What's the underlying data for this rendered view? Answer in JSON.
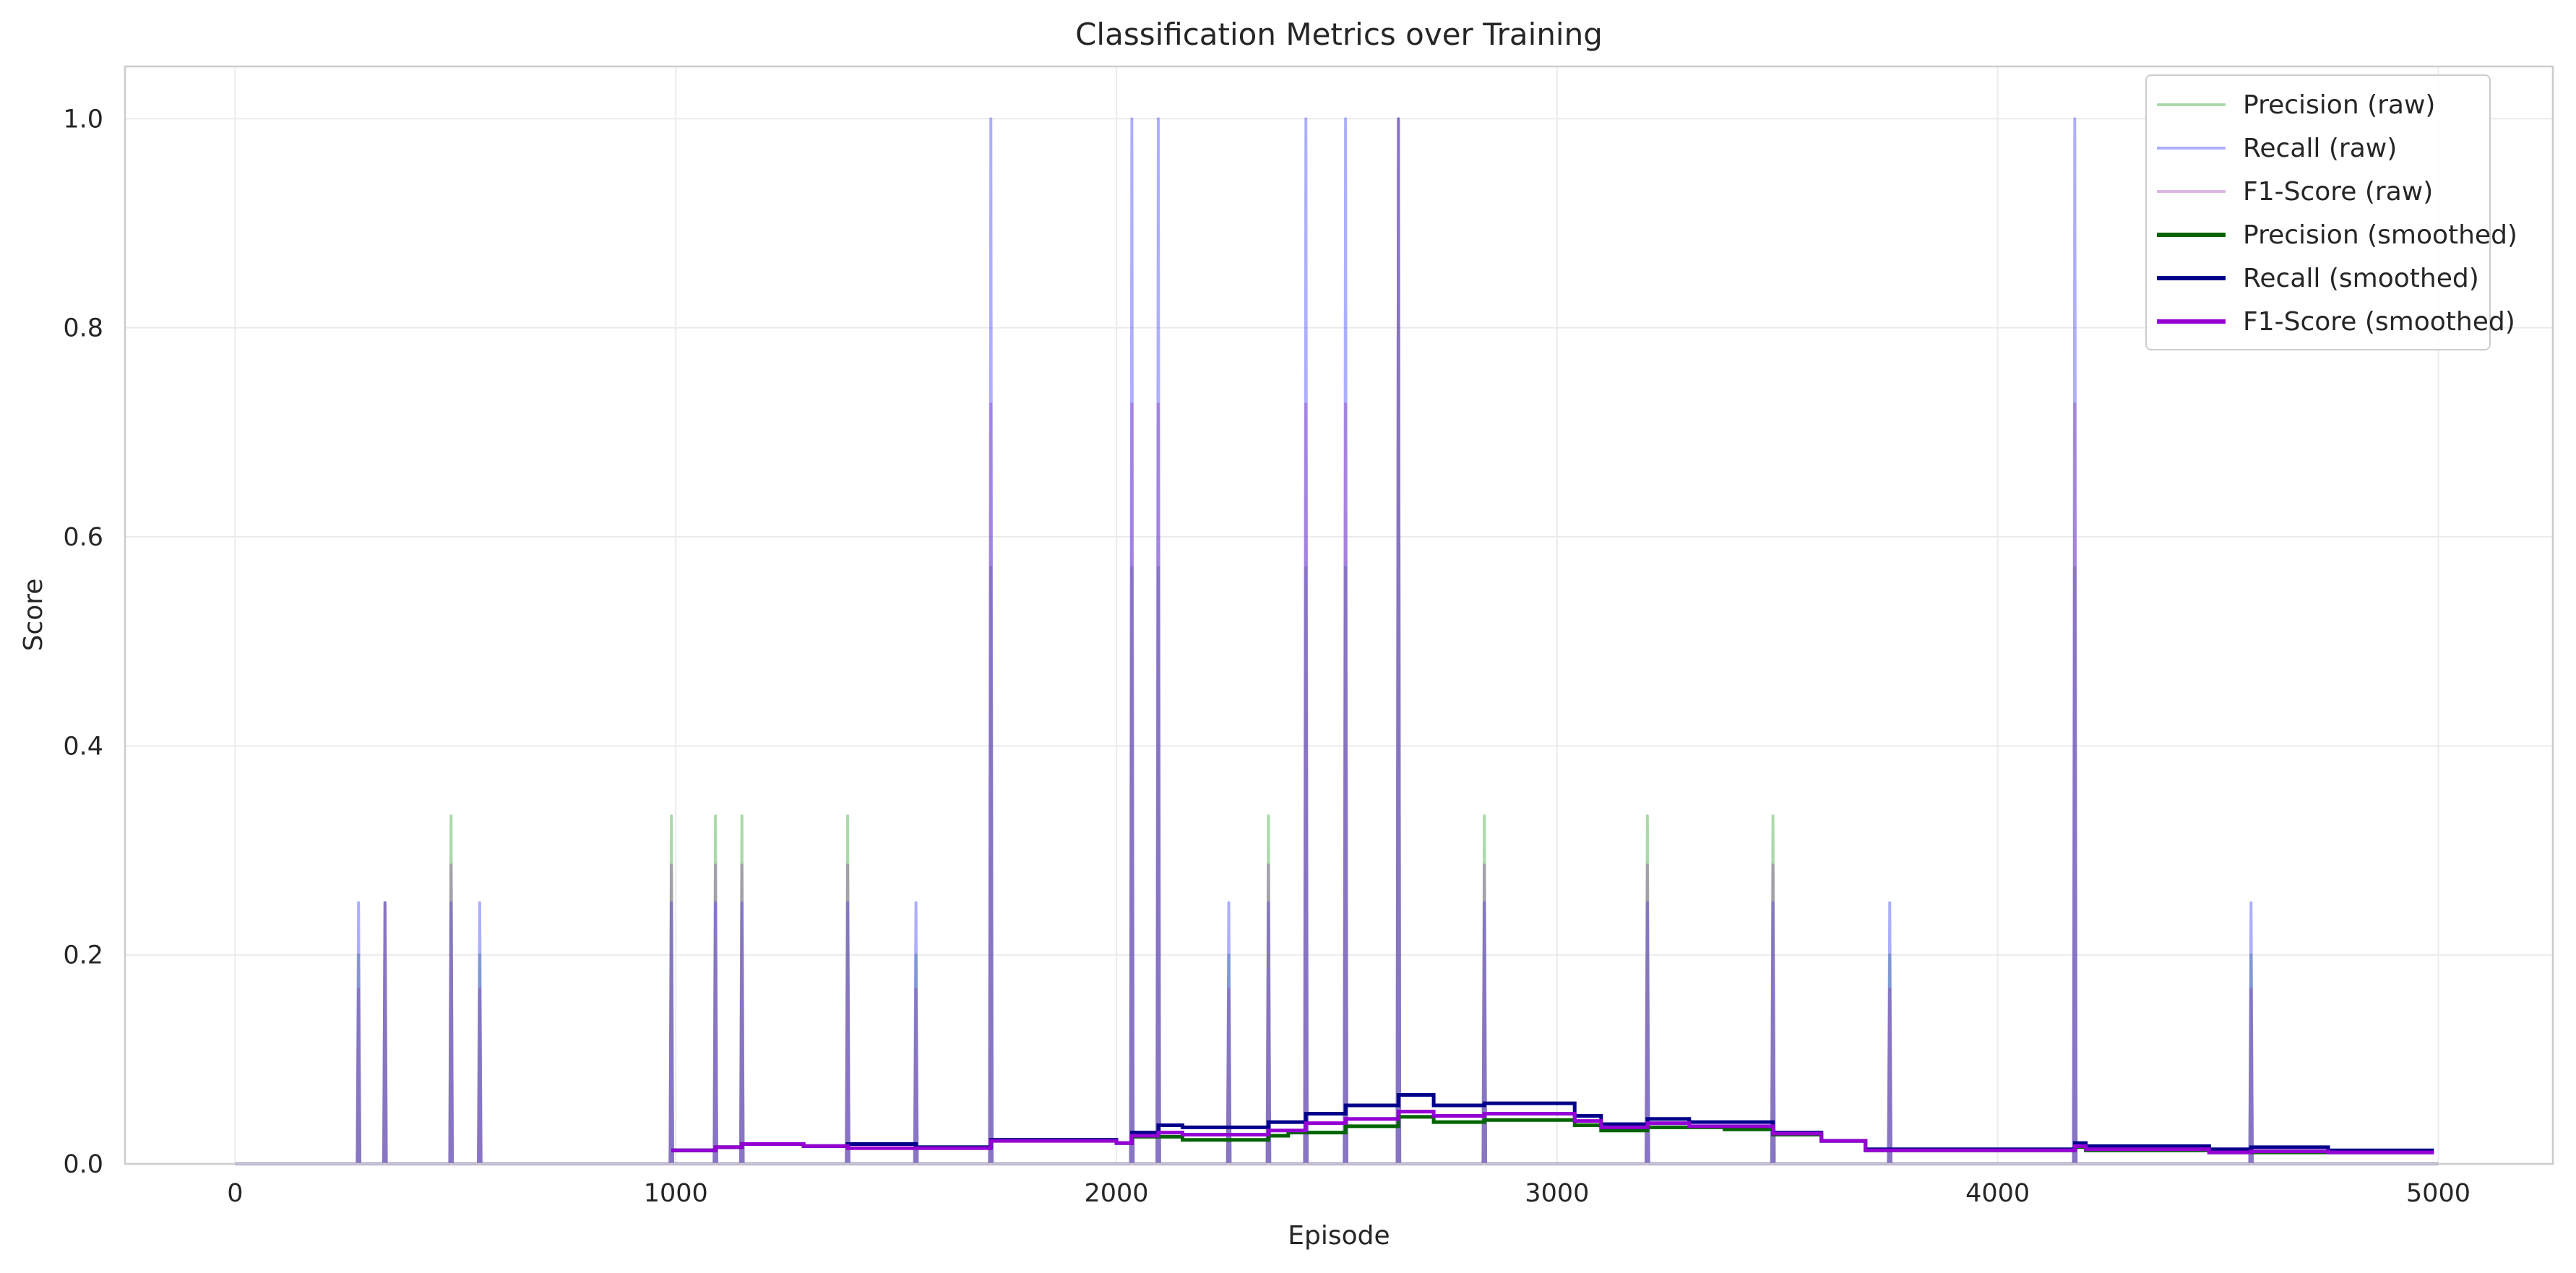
{
  "chart_data": {
    "type": "line",
    "title": "Classification Metrics over Training",
    "xlabel": "Episode",
    "ylabel": "Score",
    "xlim": [
      -250,
      5260
    ],
    "ylim": [
      0,
      1.05
    ],
    "x_ticks": [
      0,
      1000,
      2000,
      3000,
      4000,
      5000
    ],
    "y_ticks": [
      0.0,
      0.2,
      0.4,
      0.6,
      0.8,
      1.0
    ],
    "grid": true,
    "legend_position": "top-right",
    "spikes": [
      {
        "episode": 280,
        "precision": 0.2,
        "recall": 0.25,
        "f1": 0.167
      },
      {
        "episode": 340,
        "precision": 0.25,
        "recall": 0.25,
        "f1": 0.25
      },
      {
        "episode": 490,
        "precision": 0.333,
        "recall": 0.25,
        "f1": 0.286
      },
      {
        "episode": 555,
        "precision": 0.2,
        "recall": 0.25,
        "f1": 0.167
      },
      {
        "episode": 990,
        "precision": 0.333,
        "recall": 0.25,
        "f1": 0.286
      },
      {
        "episode": 1090,
        "precision": 0.333,
        "recall": 0.25,
        "f1": 0.286
      },
      {
        "episode": 1150,
        "precision": 0.333,
        "recall": 0.25,
        "f1": 0.286
      },
      {
        "episode": 1390,
        "precision": 0.333,
        "recall": 0.25,
        "f1": 0.286
      },
      {
        "episode": 1545,
        "precision": 0.2,
        "recall": 0.25,
        "f1": 0.167
      },
      {
        "episode": 1715,
        "precision": 0.571,
        "recall": 1.0,
        "f1": 0.727
      },
      {
        "episode": 2035,
        "precision": 0.571,
        "recall": 1.0,
        "f1": 0.727
      },
      {
        "episode": 2095,
        "precision": 0.571,
        "recall": 1.0,
        "f1": 0.727
      },
      {
        "episode": 2255,
        "precision": 0.2,
        "recall": 0.25,
        "f1": 0.167
      },
      {
        "episode": 2345,
        "precision": 0.333,
        "recall": 0.25,
        "f1": 0.286
      },
      {
        "episode": 2430,
        "precision": 0.571,
        "recall": 1.0,
        "f1": 0.727
      },
      {
        "episode": 2520,
        "precision": 0.571,
        "recall": 1.0,
        "f1": 0.727
      },
      {
        "episode": 2640,
        "precision": 1.0,
        "recall": 1.0,
        "f1": 1.0
      },
      {
        "episode": 2835,
        "precision": 0.333,
        "recall": 0.25,
        "f1": 0.286
      },
      {
        "episode": 3205,
        "precision": 0.333,
        "recall": 0.25,
        "f1": 0.286
      },
      {
        "episode": 3490,
        "precision": 0.333,
        "recall": 0.25,
        "f1": 0.286
      },
      {
        "episode": 3755,
        "precision": 0.2,
        "recall": 0.25,
        "f1": 0.167
      },
      {
        "episode": 4175,
        "precision": 0.571,
        "recall": 1.0,
        "f1": 0.727
      },
      {
        "episode": 4575,
        "precision": 0.2,
        "recall": 0.25,
        "f1": 0.167
      }
    ],
    "raw_episode_range": [
      0,
      5000
    ],
    "series": [
      {
        "name": "Precision (raw)",
        "color": "#2ca02c",
        "alpha": 0.4,
        "role": "raw",
        "metric": "precision"
      },
      {
        "name": "Recall (raw)",
        "color": "#4c4cff",
        "alpha": 0.45,
        "role": "raw",
        "metric": "recall"
      },
      {
        "name": "F1-Score (raw)",
        "color": "#9933aa",
        "alpha": 0.35,
        "role": "raw",
        "metric": "f1"
      },
      {
        "name": "Precision (smoothed)",
        "color": "#006400",
        "role": "smoothed",
        "x": [
          990,
          1090,
          1150,
          1290,
          1390,
          1545,
          1715,
          2000,
          2035,
          2095,
          2150,
          2345,
          2390,
          2520,
          2640,
          2720,
          2835,
          3040,
          3100,
          3205,
          3380,
          3490,
          3600,
          3700,
          4175,
          4200,
          4480,
          4575,
          4990
        ],
        "y": [
          0.013,
          0.016,
          0.019,
          0.017,
          0.019,
          0.016,
          0.023,
          0.02,
          0.026,
          0.026,
          0.023,
          0.027,
          0.03,
          0.036,
          0.045,
          0.04,
          0.042,
          0.037,
          0.032,
          0.035,
          0.033,
          0.028,
          0.022,
          0.013,
          0.016,
          0.013,
          0.011,
          0.011,
          0.011
        ]
      },
      {
        "name": "Recall (smoothed)",
        "color": "#00008b",
        "role": "smoothed",
        "x": [
          990,
          1090,
          1150,
          1290,
          1390,
          1545,
          1715,
          2000,
          2035,
          2095,
          2150,
          2345,
          2430,
          2520,
          2640,
          2720,
          2835,
          3040,
          3100,
          3205,
          3300,
          3490,
          3600,
          3700,
          4175,
          4200,
          4480,
          4575,
          4750,
          4990
        ],
        "y": [
          0.013,
          0.016,
          0.019,
          0.017,
          0.019,
          0.016,
          0.023,
          0.02,
          0.03,
          0.037,
          0.035,
          0.04,
          0.048,
          0.056,
          0.066,
          0.056,
          0.058,
          0.046,
          0.038,
          0.043,
          0.04,
          0.03,
          0.022,
          0.014,
          0.02,
          0.017,
          0.014,
          0.016,
          0.013,
          0.013
        ]
      },
      {
        "name": "F1-Score (smoothed)",
        "color": "#9400d3",
        "role": "smoothed",
        "x": [
          990,
          1090,
          1150,
          1290,
          1390,
          1545,
          1715,
          2000,
          2035,
          2095,
          2150,
          2345,
          2430,
          2520,
          2640,
          2720,
          2835,
          3040,
          3100,
          3205,
          3300,
          3490,
          3600,
          3700,
          4175,
          4200,
          4480,
          4575,
          4750,
          4990
        ],
        "y": [
          0.013,
          0.016,
          0.019,
          0.017,
          0.015,
          0.015,
          0.022,
          0.02,
          0.027,
          0.03,
          0.028,
          0.032,
          0.039,
          0.043,
          0.05,
          0.046,
          0.048,
          0.041,
          0.035,
          0.039,
          0.036,
          0.029,
          0.022,
          0.013,
          0.017,
          0.014,
          0.011,
          0.012,
          0.011,
          0.011
        ]
      }
    ]
  }
}
